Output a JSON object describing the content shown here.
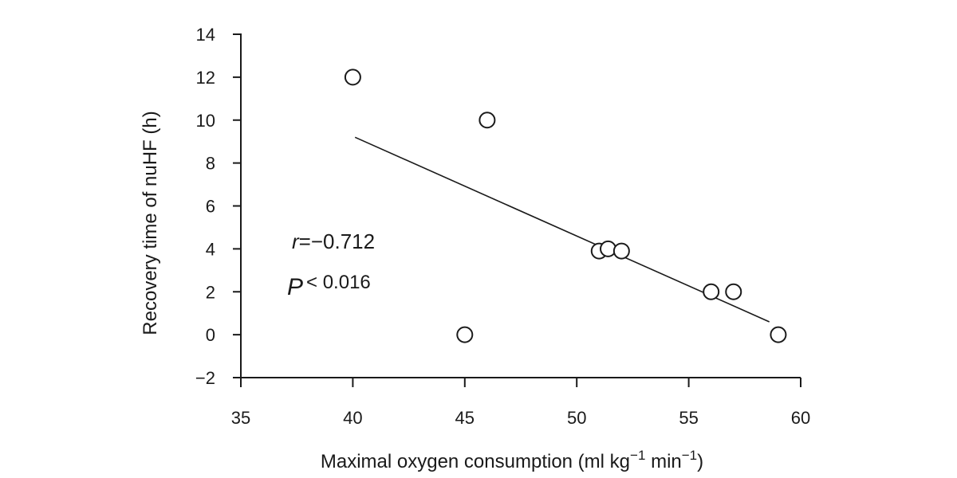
{
  "chart_data": {
    "type": "scatter",
    "title": "",
    "xlabel": "Maximal oxygen consumption (ml kg⁻¹ min⁻¹)",
    "xlabel_main": "Maximal oxygen consumption (ml kg",
    "xlabel_sup1": "−1",
    "xlabel_mid": " min",
    "xlabel_sup2": "−1",
    "xlabel_end": ")",
    "ylabel": "Recovery time  of nuHF (h)",
    "xlim": [
      35,
      60
    ],
    "ylim": [
      -2,
      14
    ],
    "xticks": [
      35,
      40,
      45,
      50,
      55,
      60
    ],
    "yticks": [
      -2,
      0,
      2,
      4,
      6,
      8,
      10,
      12,
      14
    ],
    "xtick_labels": [
      "35",
      "40",
      "45",
      "50",
      "55",
      "60"
    ],
    "ytick_labels": [
      "−2",
      "0",
      "2",
      "4",
      "6",
      "8",
      "10",
      "12",
      "14"
    ],
    "grid": false,
    "points": [
      {
        "x": 40,
        "y": 12
      },
      {
        "x": 46,
        "y": 10
      },
      {
        "x": 45,
        "y": 0
      },
      {
        "x": 51,
        "y": 3.9
      },
      {
        "x": 51.4,
        "y": 4
      },
      {
        "x": 52,
        "y": 3.9
      },
      {
        "x": 56,
        "y": 2
      },
      {
        "x": 57,
        "y": 2
      },
      {
        "x": 59,
        "y": 0
      }
    ],
    "trendline": {
      "x": [
        40.1,
        58.6
      ],
      "y": [
        9.2,
        0.6
      ]
    },
    "annotations": {
      "r_symbol": "r",
      "r_value": "=−0.712",
      "p_symbol": "P",
      "p_value": "< 0.016"
    }
  }
}
